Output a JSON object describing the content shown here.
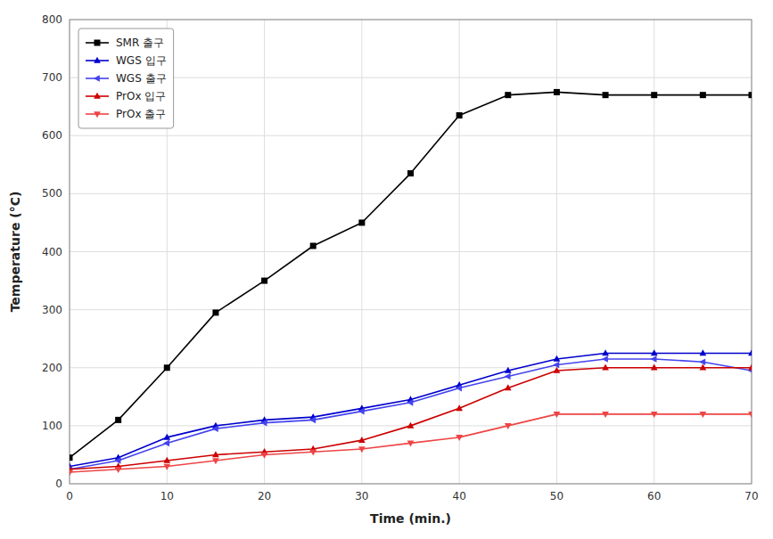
{
  "chart_data": {
    "type": "line",
    "x": [
      0,
      5,
      10,
      15,
      20,
      25,
      30,
      35,
      40,
      45,
      50,
      55,
      60,
      65,
      70
    ],
    "series": [
      {
        "name": "SMR 출구",
        "color": "#000000",
        "marker": "square",
        "values": [
          45,
          110,
          200,
          295,
          350,
          410,
          450,
          535,
          635,
          670,
          675,
          670,
          670,
          670,
          670
        ]
      },
      {
        "name": "WGS 입구",
        "color": "#0000cc",
        "marker": "triangle-up",
        "values": [
          30,
          45,
          80,
          100,
          110,
          115,
          130,
          145,
          170,
          195,
          215,
          225,
          225,
          225,
          225
        ]
      },
      {
        "name": "WGS 출구",
        "color": "#4444ee",
        "marker": "triangle-left",
        "values": [
          25,
          40,
          70,
          95,
          105,
          110,
          125,
          140,
          165,
          185,
          205,
          215,
          215,
          210,
          195
        ]
      },
      {
        "name": "PrOx 입구",
        "color": "#cc0000",
        "marker": "triangle-up",
        "values": [
          25,
          30,
          40,
          50,
          55,
          60,
          75,
          100,
          130,
          165,
          195,
          200,
          200,
          200,
          200
        ]
      },
      {
        "name": "PrOx 출구",
        "color": "#ee4444",
        "marker": "triangle-down",
        "values": [
          20,
          25,
          30,
          40,
          50,
          55,
          60,
          70,
          80,
          100,
          120,
          120,
          120,
          120,
          120
        ]
      }
    ],
    "xlabel": "Time (min.)",
    "ylabel": "Temperature (°C)",
    "xlim": [
      0,
      70
    ],
    "ylim": [
      0,
      800
    ],
    "xticks": [
      0,
      10,
      20,
      30,
      40,
      50,
      60,
      70
    ],
    "yticks": [
      0,
      100,
      200,
      300,
      400,
      500,
      600,
      700,
      800
    ],
    "grid": true,
    "legend": "upper left"
  }
}
